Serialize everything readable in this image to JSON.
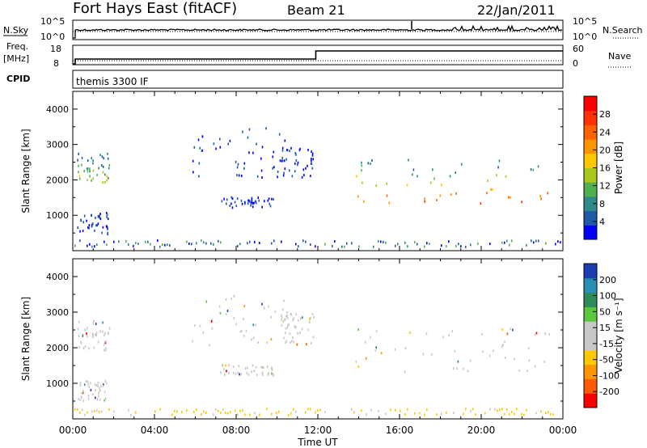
{
  "header": {
    "station": "Fort Hays East (fitACF)",
    "beam": "Beam 21",
    "date": "22/Jan/2011"
  },
  "strip": {
    "nsky_label": "N.Sky",
    "nsky_ticks": [
      "10^5",
      "10^0"
    ],
    "nsearch_label": "N.Search",
    "nsearch_ticks": [
      "10^5",
      "10^0"
    ],
    "freq_label": "Freq.",
    "freq_unit": "[MHz]",
    "freq_ticks": [
      "18",
      "8"
    ],
    "nave_label": "Nave",
    "nave_ticks": [
      "60",
      "0"
    ],
    "cpid_label": "CPID",
    "cpid_value": "themis 3300 IF"
  },
  "chart_data": [
    {
      "type": "heatmap",
      "name": "power",
      "ylabel": "Slant Range [km]",
      "xlabel": "Time UT",
      "xlim": [
        0,
        24
      ],
      "ylim": [
        0,
        4500
      ],
      "xticks": [
        "00:00",
        "04:00",
        "08:00",
        "12:00",
        "16:00",
        "20:00",
        "00:00"
      ],
      "yticks": [
        "1000",
        "2000",
        "3000",
        "4000"
      ],
      "colorbar": {
        "label": "Power [dB]",
        "ticks": [
          "4",
          "8",
          "12",
          "16",
          "20",
          "24",
          "28"
        ],
        "colors": [
          "#0000ff",
          "#1e5aa8",
          "#2f8a8a",
          "#4fb04f",
          "#a8c81e",
          "#ffc800",
          "#ff9600",
          "#ff6400",
          "#ff3200",
          "#ff0000"
        ]
      },
      "regions": [
        {
          "t0": 0.2,
          "t1": 1.8,
          "r0": 1950,
          "r1": 2800,
          "level": 0.35
        },
        {
          "t0": 0.2,
          "t1": 1.8,
          "r0": 500,
          "r1": 1100,
          "level": 0.1
        },
        {
          "t0": 5.8,
          "t1": 10.5,
          "r0": 2100,
          "r1": 3550,
          "level": 0.15
        },
        {
          "t0": 7.2,
          "t1": 9.8,
          "r0": 1250,
          "r1": 1550,
          "level": 0.1
        },
        {
          "t0": 10.2,
          "t1": 11.8,
          "r0": 2100,
          "r1": 3000,
          "level": 0.1
        },
        {
          "t0": 13.8,
          "t1": 23.4,
          "r0": 1350,
          "r1": 2600,
          "level": 0.7
        }
      ]
    },
    {
      "type": "heatmap",
      "name": "velocity",
      "ylabel": "Slant Range [km]",
      "xlabel": "Time UT",
      "xlim": [
        0,
        24
      ],
      "ylim": [
        0,
        4500
      ],
      "xticks": [
        "00:00",
        "04:00",
        "08:00",
        "12:00",
        "16:00",
        "20:00",
        "00:00"
      ],
      "yticks": [
        "1000",
        "2000",
        "3000",
        "4000"
      ],
      "colorbar": {
        "label": "Velocity [m s⁻¹]",
        "ticks": [
          "200",
          "100",
          "50",
          "15",
          "-15",
          "-50",
          "-100",
          "-200"
        ],
        "colors": [
          "#1e3cb4",
          "#2a8fb4",
          "#2f8a5a",
          "#5ac83c",
          "#c8c8c8",
          "#c8c8c8",
          "#ffc800",
          "#ff9600",
          "#ff5a00",
          "#ff0000"
        ]
      },
      "regions": [
        {
          "t0": 0.2,
          "t1": 1.8,
          "r0": 1950,
          "r1": 2800,
          "level": 0.5
        },
        {
          "t0": 0.2,
          "t1": 1.8,
          "r0": 500,
          "r1": 1100,
          "level": 0.5
        },
        {
          "t0": 5.8,
          "t1": 10.5,
          "r0": 2100,
          "r1": 3550,
          "level": 0.5
        },
        {
          "t0": 7.2,
          "t1": 9.8,
          "r0": 1250,
          "r1": 1550,
          "level": 0.3
        },
        {
          "t0": 10.2,
          "t1": 11.8,
          "r0": 2100,
          "r1": 3000,
          "level": 0.5
        },
        {
          "t0": 13.8,
          "t1": 23.4,
          "r0": 1350,
          "r1": 2600,
          "level": 0.5
        }
      ]
    }
  ]
}
